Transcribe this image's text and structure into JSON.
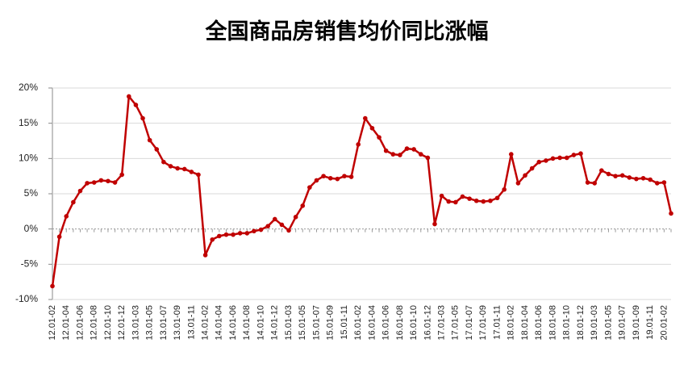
{
  "chart_data": {
    "type": "line",
    "title": "全国商品房销售均价同比涨幅",
    "categories": [
      "12.01-02",
      null,
      "12.01-04",
      null,
      "12.01-06",
      null,
      "12.01-08",
      null,
      "12.01-10",
      null,
      "12.01-12",
      null,
      "13.01-03",
      null,
      "13.01-05",
      null,
      "13.01-07",
      null,
      "13.01-09",
      null,
      "13.01-11",
      null,
      "14.01-02",
      null,
      "14.01-04",
      null,
      "14.01-06",
      null,
      "14.01-08",
      null,
      "14.01-10",
      null,
      "14.01-12",
      null,
      "15.01-03",
      null,
      "15.01-05",
      null,
      "15.01-07",
      null,
      "15.01-09",
      null,
      "15.01-11",
      null,
      "16.01-02",
      null,
      "16.01-04",
      null,
      "16.01-06",
      null,
      "16.01-08",
      null,
      "16.01-10",
      null,
      "16.01-12",
      null,
      "17.01-03",
      null,
      "17.01-05",
      null,
      "17.01-07",
      null,
      "17.01-09",
      null,
      "17.01-11",
      null,
      "18.01-02",
      null,
      "18.01-04",
      null,
      "18.01-06",
      null,
      "18.01-08",
      null,
      "18.01-10",
      null,
      "18.01-12",
      null,
      "19.01-03",
      null,
      "19.01-05",
      null,
      "19.01-07",
      null,
      "19.01-09",
      null,
      "19.01-11",
      null,
      "20.01-02",
      null
    ],
    "values": [
      -8.1,
      -1.1,
      1.8,
      3.8,
      5.4,
      6.5,
      6.6,
      6.9,
      6.8,
      6.6,
      7.7,
      18.8,
      17.6,
      15.7,
      12.6,
      11.3,
      9.5,
      8.9,
      8.6,
      8.5,
      8.1,
      7.7,
      -3.7,
      -1.5,
      -1.0,
      -0.8,
      -0.8,
      -0.6,
      -0.6,
      -0.3,
      -0.1,
      0.4,
      1.4,
      0.6,
      -0.2,
      1.7,
      3.3,
      5.9,
      6.9,
      7.5,
      7.2,
      7.1,
      7.5,
      7.4,
      12.0,
      15.7,
      14.3,
      13.0,
      11.1,
      10.6,
      10.5,
      11.4,
      11.3,
      10.6,
      10.1,
      0.7,
      4.7,
      3.9,
      3.8,
      4.6,
      4.3,
      4.0,
      3.9,
      4.0,
      4.4,
      5.6,
      10.6,
      6.5,
      7.6,
      8.6,
      9.5,
      9.7,
      10.0,
      10.1,
      10.1,
      10.5,
      10.7,
      6.6,
      6.5,
      8.3,
      7.8,
      7.5,
      7.6,
      7.3,
      7.1,
      7.2,
      7.0,
      6.5,
      6.6,
      2.2
    ],
    "color": "#c00000",
    "ylim": [
      -10,
      20
    ],
    "yticks": [
      {
        "value": -10,
        "label": "-10%"
      },
      {
        "value": -5,
        "label": "-5%"
      },
      {
        "value": 0,
        "label": "0%"
      },
      {
        "value": 5,
        "label": "5%"
      },
      {
        "value": 10,
        "label": "10%"
      },
      {
        "value": 15,
        "label": "15%"
      },
      {
        "value": 20,
        "label": "20%"
      }
    ],
    "grid": true
  }
}
